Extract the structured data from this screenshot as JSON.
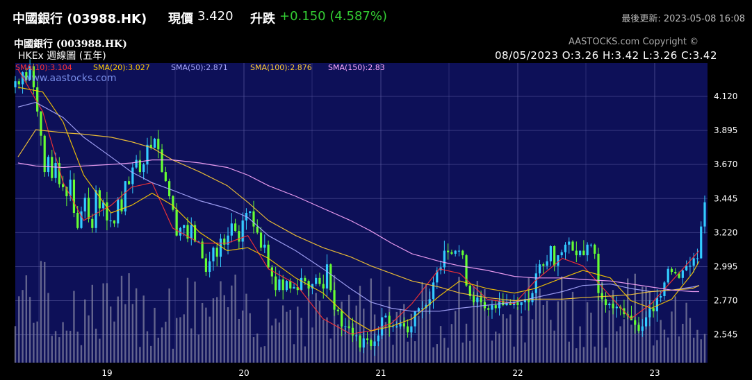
{
  "header": {
    "title": "中國銀行 (03988.HK)",
    "price_label": "現價",
    "price_value": "3.420",
    "change_label": "升跌",
    "change_value": "+0.150 (4.587%)",
    "updated": "最後更新: 2023-05-08 16:08"
  },
  "chart_header": {
    "stock_name": "中國銀行 (003988.HK)",
    "chart_type": "HKEx 週線圖 (五年)",
    "copyright": "AASTOCKS.com Copyright ©",
    "watermark": "www.aastocks.com",
    "ohlc": "08/05/2023  O:3.26  H:3.42  L:3.26  C:3.42"
  },
  "legend": [
    {
      "label": "SMA(10):3.104",
      "color": "#ff3333"
    },
    {
      "label": "SMA(20):3.027",
      "color": "#ffcc00"
    },
    {
      "label": "SMA(50):2.871",
      "color": "#aaaaff"
    },
    {
      "label": "SMA(100):2.876",
      "color": "#ffcc33"
    },
    {
      "label": "SMA(150):2.83",
      "color": "#ffaaff"
    }
  ],
  "colors": {
    "background": "#000000",
    "plot_bg": "#0d1058",
    "grid": "#5a5aa0",
    "candle_up": "#33ccff",
    "candle_down": "#66ff33",
    "volume": "#8080a0",
    "change": "#33cc33"
  },
  "chart_data": {
    "type": "candlestick",
    "title": "中國銀行 (003988.HK)",
    "subtitle": "HKEx 週線圖 (五年)",
    "x_ticks": [
      "19",
      "20",
      "21",
      "22",
      "23"
    ],
    "y_ticks": [
      "4.120",
      "3.895",
      "3.670",
      "3.445",
      "3.220",
      "2.995",
      "2.770",
      "2.545"
    ],
    "ylim": [
      2.36,
      4.34
    ],
    "x_range": [
      2018.35,
      2023.4
    ],
    "grid": true,
    "close": [
      4.22,
      4.2,
      4.28,
      4.23,
      4.32,
      4.18,
      4.02,
      3.86,
      3.62,
      3.72,
      3.58,
      3.68,
      3.54,
      3.52,
      3.46,
      3.57,
      3.35,
      3.25,
      3.36,
      3.45,
      3.31,
      3.25,
      3.5,
      3.38,
      3.42,
      3.3,
      3.3,
      3.28,
      3.44,
      3.36,
      3.56,
      3.54,
      3.65,
      3.7,
      3.62,
      3.67,
      3.8,
      3.78,
      3.84,
      3.77,
      3.62,
      3.56,
      3.46,
      3.37,
      3.2,
      3.25,
      3.27,
      3.18,
      3.27,
      3.16,
      3.16,
      3.05,
      2.96,
      3.03,
      3.12,
      3.06,
      3.18,
      3.14,
      3.2,
      3.28,
      3.23,
      3.16,
      3.3,
      3.35,
      3.36,
      3.26,
      3.22,
      3.12,
      3.14,
      2.99,
      2.93,
      2.84,
      2.91,
      2.84,
      2.9,
      2.85,
      2.86,
      2.84,
      2.92,
      2.9,
      2.85,
      2.88,
      2.92,
      2.88,
      2.85,
      3.01,
      2.84,
      2.71,
      2.7,
      2.6,
      2.6,
      2.59,
      2.54,
      2.54,
      2.46,
      2.52,
      2.51,
      2.47,
      2.5,
      2.54,
      2.66,
      2.67,
      2.6,
      2.6,
      2.6,
      2.62,
      2.6,
      2.56,
      2.6,
      2.7,
      2.72,
      2.72,
      2.74,
      2.78,
      2.89,
      2.97,
      2.99,
      3.1,
      3.09,
      3.08,
      3.1,
      3.1,
      3.07,
      2.87,
      2.8,
      2.76,
      2.79,
      2.76,
      2.72,
      2.71,
      2.74,
      2.72,
      2.77,
      2.74,
      2.76,
      2.74,
      2.76,
      2.74,
      2.76,
      2.78,
      2.76,
      2.82,
      2.95,
      3.01,
      3.0,
      3.03,
      3.13,
      3.0,
      3.07,
      3.09,
      3.14,
      3.16,
      3.1,
      3.07,
      3.1,
      3.07,
      3.14,
      3.14,
      3.08,
      2.82,
      2.78,
      2.74,
      2.75,
      2.72,
      2.73,
      2.72,
      2.68,
      2.67,
      2.64,
      2.61,
      2.57,
      2.6,
      2.66,
      2.72,
      2.7,
      2.79,
      2.8,
      2.89,
      2.98,
      2.96,
      2.95,
      2.92,
      2.97,
      3.0,
      3.0,
      3.05,
      3.05,
      3.26,
      3.42
    ],
    "sma": [
      {
        "name": "SMA(10)",
        "value": 3.104,
        "points": [
          [
            2018.37,
            4.3
          ],
          [
            2018.55,
            4.02
          ],
          [
            2018.7,
            3.55
          ],
          [
            2018.85,
            3.3
          ],
          [
            2019.05,
            3.4
          ],
          [
            2019.2,
            3.52
          ],
          [
            2019.35,
            3.55
          ],
          [
            2019.5,
            3.25
          ],
          [
            2019.7,
            3.15
          ],
          [
            2019.9,
            3.15
          ],
          [
            2020.05,
            3.2
          ],
          [
            2020.2,
            2.98
          ],
          [
            2020.4,
            2.88
          ],
          [
            2020.6,
            2.65
          ],
          [
            2020.8,
            2.55
          ],
          [
            2020.95,
            2.57
          ],
          [
            2021.1,
            2.62
          ],
          [
            2021.25,
            2.75
          ],
          [
            2021.45,
            2.98
          ],
          [
            2021.6,
            2.95
          ],
          [
            2021.8,
            2.78
          ],
          [
            2022.0,
            2.75
          ],
          [
            2022.15,
            2.9
          ],
          [
            2022.35,
            3.05
          ],
          [
            2022.5,
            3.0
          ],
          [
            2022.7,
            2.8
          ],
          [
            2022.85,
            2.65
          ],
          [
            2023.0,
            2.75
          ],
          [
            2023.15,
            2.9
          ],
          [
            2023.3,
            3.05
          ],
          [
            2023.35,
            3.1
          ]
        ]
      },
      {
        "name": "SMA(20)",
        "value": 3.027,
        "points": [
          [
            2018.37,
            4.18
          ],
          [
            2018.55,
            4.15
          ],
          [
            2018.7,
            3.95
          ],
          [
            2018.85,
            3.6
          ],
          [
            2019.05,
            3.35
          ],
          [
            2019.2,
            3.4
          ],
          [
            2019.35,
            3.48
          ],
          [
            2019.5,
            3.4
          ],
          [
            2019.7,
            3.22
          ],
          [
            2019.9,
            3.1
          ],
          [
            2020.05,
            3.12
          ],
          [
            2020.2,
            3.05
          ],
          [
            2020.4,
            2.92
          ],
          [
            2020.6,
            2.82
          ],
          [
            2020.8,
            2.65
          ],
          [
            2020.95,
            2.57
          ],
          [
            2021.1,
            2.6
          ],
          [
            2021.25,
            2.65
          ],
          [
            2021.45,
            2.8
          ],
          [
            2021.6,
            2.9
          ],
          [
            2021.8,
            2.85
          ],
          [
            2022.0,
            2.82
          ],
          [
            2022.15,
            2.85
          ],
          [
            2022.35,
            2.92
          ],
          [
            2022.5,
            2.97
          ],
          [
            2022.7,
            2.92
          ],
          [
            2022.85,
            2.77
          ],
          [
            2023.0,
            2.72
          ],
          [
            2023.15,
            2.78
          ],
          [
            2023.3,
            2.95
          ],
          [
            2023.35,
            3.03
          ]
        ]
      },
      {
        "name": "SMA(50)",
        "value": 2.871,
        "points": [
          [
            2018.37,
            4.05
          ],
          [
            2018.5,
            4.08
          ],
          [
            2018.7,
            3.98
          ],
          [
            2018.85,
            3.85
          ],
          [
            2019.05,
            3.72
          ],
          [
            2019.2,
            3.62
          ],
          [
            2019.35,
            3.55
          ],
          [
            2019.5,
            3.5
          ],
          [
            2019.7,
            3.43
          ],
          [
            2019.9,
            3.38
          ],
          [
            2020.05,
            3.32
          ],
          [
            2020.2,
            3.2
          ],
          [
            2020.4,
            3.1
          ],
          [
            2020.6,
            2.98
          ],
          [
            2020.8,
            2.85
          ],
          [
            2020.95,
            2.76
          ],
          [
            2021.1,
            2.72
          ],
          [
            2021.25,
            2.7
          ],
          [
            2021.45,
            2.7
          ],
          [
            2021.6,
            2.72
          ],
          [
            2021.8,
            2.74
          ],
          [
            2022.0,
            2.76
          ],
          [
            2022.15,
            2.79
          ],
          [
            2022.35,
            2.83
          ],
          [
            2022.5,
            2.87
          ],
          [
            2022.7,
            2.88
          ],
          [
            2022.85,
            2.85
          ],
          [
            2023.0,
            2.83
          ],
          [
            2023.15,
            2.84
          ],
          [
            2023.3,
            2.86
          ],
          [
            2023.35,
            2.87
          ]
        ]
      },
      {
        "name": "SMA(100)",
        "value": 2.876,
        "points": [
          [
            2018.37,
            3.72
          ],
          [
            2018.5,
            3.9
          ],
          [
            2018.7,
            3.88
          ],
          [
            2018.85,
            3.87
          ],
          [
            2019.05,
            3.85
          ],
          [
            2019.2,
            3.82
          ],
          [
            2019.35,
            3.78
          ],
          [
            2019.5,
            3.7
          ],
          [
            2019.7,
            3.62
          ],
          [
            2019.9,
            3.53
          ],
          [
            2020.05,
            3.42
          ],
          [
            2020.2,
            3.3
          ],
          [
            2020.4,
            3.2
          ],
          [
            2020.6,
            3.12
          ],
          [
            2020.8,
            3.06
          ],
          [
            2020.95,
            3.0
          ],
          [
            2021.1,
            2.95
          ],
          [
            2021.25,
            2.9
          ],
          [
            2021.45,
            2.86
          ],
          [
            2021.6,
            2.82
          ],
          [
            2021.8,
            2.79
          ],
          [
            2022.0,
            2.77
          ],
          [
            2022.15,
            2.78
          ],
          [
            2022.35,
            2.78
          ],
          [
            2022.5,
            2.79
          ],
          [
            2022.7,
            2.8
          ],
          [
            2022.85,
            2.81
          ],
          [
            2023.0,
            2.83
          ],
          [
            2023.15,
            2.84
          ],
          [
            2023.3,
            2.85
          ],
          [
            2023.35,
            2.87
          ]
        ]
      },
      {
        "name": "SMA(150)",
        "value": 2.83,
        "points": [
          [
            2018.37,
            3.68
          ],
          [
            2018.5,
            3.66
          ],
          [
            2018.7,
            3.65
          ],
          [
            2018.85,
            3.66
          ],
          [
            2019.05,
            3.67
          ],
          [
            2019.2,
            3.68
          ],
          [
            2019.35,
            3.7
          ],
          [
            2019.5,
            3.7
          ],
          [
            2019.7,
            3.68
          ],
          [
            2019.9,
            3.65
          ],
          [
            2020.05,
            3.6
          ],
          [
            2020.2,
            3.53
          ],
          [
            2020.4,
            3.46
          ],
          [
            2020.6,
            3.38
          ],
          [
            2020.8,
            3.3
          ],
          [
            2020.95,
            3.23
          ],
          [
            2021.1,
            3.15
          ],
          [
            2021.25,
            3.08
          ],
          [
            2021.45,
            3.03
          ],
          [
            2021.6,
            3.0
          ],
          [
            2021.8,
            2.97
          ],
          [
            2022.0,
            2.93
          ],
          [
            2022.15,
            2.92
          ],
          [
            2022.35,
            2.92
          ],
          [
            2022.5,
            2.91
          ],
          [
            2022.7,
            2.9
          ],
          [
            2022.85,
            2.88
          ],
          [
            2023.0,
            2.86
          ],
          [
            2023.15,
            2.84
          ],
          [
            2023.3,
            2.83
          ],
          [
            2023.35,
            2.83
          ]
        ]
      }
    ]
  }
}
